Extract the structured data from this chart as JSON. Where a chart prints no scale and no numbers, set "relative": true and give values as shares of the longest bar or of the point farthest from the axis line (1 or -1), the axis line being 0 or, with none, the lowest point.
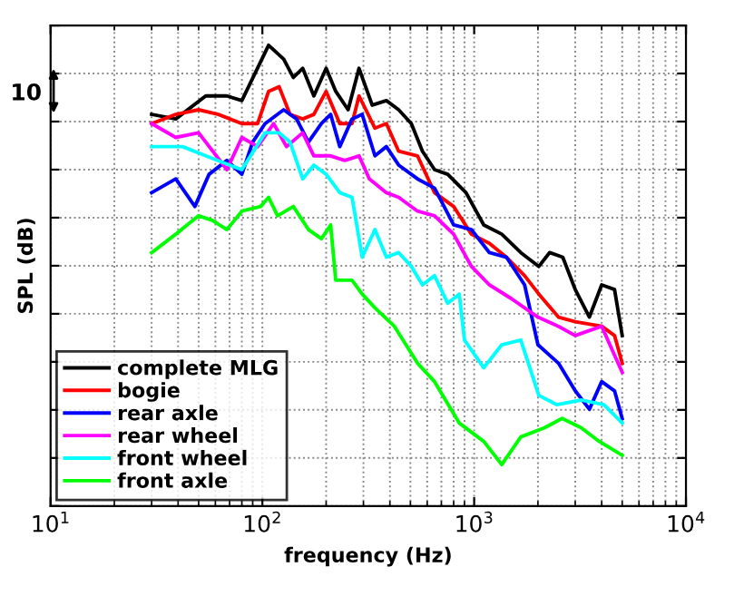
{
  "chart_data": {
    "type": "line",
    "relative": true,
    "log": "x",
    "grid": true,
    "legend": "bottom left",
    "xlabel": "frequency (Hz)",
    "ylabel": "SPL (dB)",
    "annotations": [
      "10"
    ],
    "xlim": [
      10,
      10000
    ],
    "xticks": [
      {
        "value": 10,
        "label": "10$^{1}$"
      },
      {
        "value": 100,
        "label": "10$^{2}$"
      },
      {
        "value": 1000,
        "label": "10$^{3}$"
      },
      {
        "value": 10000,
        "label": "10$^{4}$"
      }
    ],
    "series": [
      {
        "name": "complete MLG",
        "color": "#000000",
        "x": [
          30,
          39,
          54,
          68,
          80,
          107,
          126,
          140,
          155,
          175,
          200,
          222,
          254,
          286,
          330,
          385,
          440,
          505,
          570,
          650,
          750,
          915,
          1110,
          1350,
          1660,
          2020,
          2270,
          2620,
          3000,
          3500,
          4000,
          4600,
          5000
        ],
        "values": [
          0.85,
          0.84,
          0.89,
          0.89,
          0.88,
          1.0,
          0.97,
          0.93,
          0.95,
          0.89,
          0.95,
          0.9,
          0.86,
          0.95,
          0.87,
          0.88,
          0.86,
          0.83,
          0.77,
          0.73,
          0.72,
          0.68,
          0.61,
          0.59,
          0.55,
          0.52,
          0.55,
          0.54,
          0.47,
          0.41,
          0.48,
          0.47,
          0.37
        ]
      },
      {
        "name": "bogie",
        "color": "#ff0000",
        "x": [
          30,
          39,
          50,
          62,
          80,
          95,
          107,
          120,
          135,
          155,
          175,
          200,
          232,
          265,
          286,
          340,
          385,
          440,
          540,
          650,
          800,
          970,
          1180,
          1420,
          1730,
          2020,
          2500,
          3000,
          4000,
          4600,
          5000
        ],
        "values": [
          0.83,
          0.85,
          0.86,
          0.85,
          0.83,
          0.83,
          0.9,
          0.91,
          0.85,
          0.84,
          0.85,
          0.9,
          0.83,
          0.83,
          0.89,
          0.82,
          0.83,
          0.77,
          0.76,
          0.68,
          0.65,
          0.59,
          0.57,
          0.54,
          0.5,
          0.46,
          0.41,
          0.4,
          0.39,
          0.37,
          0.31
        ]
      },
      {
        "name": "rear axle",
        "color": "#0000ff",
        "x": [
          30,
          39,
          48,
          56,
          68,
          80,
          90,
          103,
          126,
          145,
          165,
          190,
          210,
          232,
          265,
          296,
          340,
          385,
          440,
          540,
          650,
          800,
          970,
          1180,
          1420,
          1730,
          2000,
          2500,
          3000,
          3500,
          4000,
          4600,
          5000
        ],
        "values": [
          0.68,
          0.71,
          0.65,
          0.72,
          0.75,
          0.72,
          0.79,
          0.83,
          0.86,
          0.84,
          0.79,
          0.83,
          0.85,
          0.78,
          0.84,
          0.85,
          0.76,
          0.78,
          0.74,
          0.71,
          0.69,
          0.61,
          0.6,
          0.55,
          0.54,
          0.48,
          0.35,
          0.31,
          0.25,
          0.21,
          0.27,
          0.25,
          0.19
        ]
      },
      {
        "name": "rear wheel",
        "color": "#ff00ff",
        "x": [
          30,
          39,
          50,
          68,
          80,
          95,
          113,
          130,
          155,
          175,
          210,
          245,
          286,
          320,
          385,
          440,
          540,
          650,
          800,
          970,
          1180,
          1500,
          2000,
          2500,
          3000,
          4000,
          5000
        ],
        "values": [
          0.83,
          0.8,
          0.81,
          0.73,
          0.8,
          0.78,
          0.83,
          0.78,
          0.81,
          0.76,
          0.76,
          0.75,
          0.76,
          0.71,
          0.68,
          0.67,
          0.64,
          0.63,
          0.59,
          0.52,
          0.48,
          0.45,
          0.41,
          0.39,
          0.37,
          0.39,
          0.29
        ]
      },
      {
        "name": "front wheel",
        "color": "#00ffff",
        "x": [
          30,
          42,
          54,
          70,
          80,
          103,
          120,
          135,
          155,
          175,
          200,
          232,
          265,
          296,
          340,
          385,
          440,
          505,
          570,
          650,
          750,
          850,
          900,
          1110,
          1350,
          1660,
          2020,
          2450,
          3200,
          4100,
          5000
        ],
        "values": [
          0.78,
          0.78,
          0.76,
          0.74,
          0.73,
          0.81,
          0.81,
          0.79,
          0.71,
          0.74,
          0.72,
          0.68,
          0.67,
          0.54,
          0.6,
          0.54,
          0.55,
          0.52,
          0.48,
          0.5,
          0.44,
          0.46,
          0.36,
          0.3,
          0.35,
          0.36,
          0.24,
          0.22,
          0.23,
          0.22,
          0.18
        ]
      },
      {
        "name": "front axle",
        "color": "#00ff00",
        "x": [
          30,
          39,
          50,
          58,
          68,
          80,
          98,
          107,
          118,
          140,
          165,
          190,
          210,
          222,
          265,
          296,
          340,
          420,
          540,
          650,
          850,
          1110,
          1350,
          1660,
          2150,
          2600,
          3200,
          3900,
          5000
        ],
        "values": [
          0.55,
          0.59,
          0.63,
          0.62,
          0.6,
          0.64,
          0.65,
          0.67,
          0.63,
          0.65,
          0.6,
          0.58,
          0.61,
          0.49,
          0.49,
          0.46,
          0.43,
          0.39,
          0.31,
          0.27,
          0.18,
          0.14,
          0.09,
          0.15,
          0.17,
          0.19,
          0.17,
          0.14,
          0.11
        ]
      }
    ]
  }
}
